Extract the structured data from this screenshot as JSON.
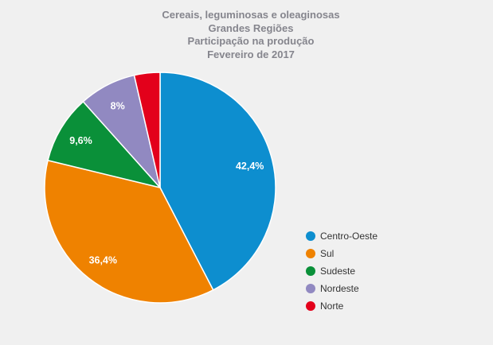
{
  "background_color": "#f0f0f0",
  "title_color": "#85858d",
  "chart_data": {
    "type": "pie",
    "title": "Cereais, leguminosas e oleaginosas — Grandes Regiões — Participação na produção — Fevereiro de 2017",
    "title_lines": [
      "Cereais, leguminosas e oleaginosas",
      "Grandes Regiões",
      "Participação na produção",
      "Fevereiro de 2017"
    ],
    "legend_position": "right",
    "label_color": "#ffffff",
    "start_angle_deg": 0,
    "direction": "clockwise",
    "series": [
      {
        "name": "Centro-Oeste",
        "value": 42.4,
        "label": "42,4%",
        "color": "#0d8ecf"
      },
      {
        "name": "Sul",
        "value": 36.4,
        "label": "36,4%",
        "color": "#ef8200"
      },
      {
        "name": "Sudeste",
        "value": 9.6,
        "label": "9,6%",
        "color": "#0a9039"
      },
      {
        "name": "Nordeste",
        "value": 8.0,
        "label": "8%",
        "color": "#9189c1"
      },
      {
        "name": "Norte",
        "value": 3.6,
        "label": "",
        "color": "#e3001b"
      }
    ]
  }
}
